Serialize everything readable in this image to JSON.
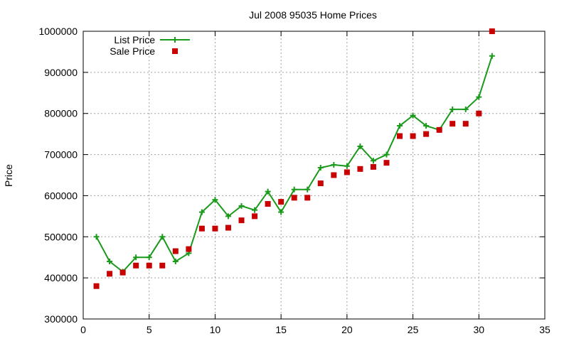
{
  "chart_data": {
    "type": "line",
    "title": "Jul 2008 95035 Home Prices",
    "xlabel": "",
    "ylabel": "Price",
    "xlim": [
      0,
      35
    ],
    "ylim": [
      300000,
      1000000
    ],
    "x_ticks": [
      0,
      5,
      10,
      15,
      20,
      25,
      30,
      35
    ],
    "y_ticks": [
      300000,
      400000,
      500000,
      600000,
      700000,
      800000,
      900000,
      1000000
    ],
    "grid": true,
    "legend_position": "top-left",
    "x": [
      1,
      2,
      3,
      4,
      5,
      6,
      7,
      8,
      9,
      10,
      11,
      12,
      13,
      14,
      15,
      16,
      17,
      18,
      19,
      20,
      21,
      22,
      23,
      24,
      25,
      26,
      27,
      28,
      29,
      30,
      31
    ],
    "series": [
      {
        "name": "List Price",
        "style": "line+markers",
        "marker": "plus",
        "color": "#1a9a1a",
        "values": [
          500000,
          440000,
          415000,
          450000,
          450000,
          500000,
          440000,
          460000,
          560000,
          590000,
          550000,
          575000,
          565000,
          610000,
          560000,
          615000,
          615000,
          668000,
          675000,
          672000,
          720000,
          685000,
          700000,
          770000,
          795000,
          770000,
          760000,
          810000,
          810000,
          840000,
          940000
        ]
      },
      {
        "name": "Sale Price",
        "style": "markers",
        "marker": "square",
        "color": "#c80000",
        "values": [
          380000,
          410000,
          413000,
          430000,
          430000,
          430000,
          465000,
          470000,
          520000,
          520000,
          522000,
          540000,
          550000,
          580000,
          585000,
          595000,
          595000,
          630000,
          650000,
          657000,
          665000,
          670000,
          680000,
          745000,
          745000,
          750000,
          760000,
          775000,
          775000,
          800000,
          1000000
        ]
      }
    ]
  }
}
